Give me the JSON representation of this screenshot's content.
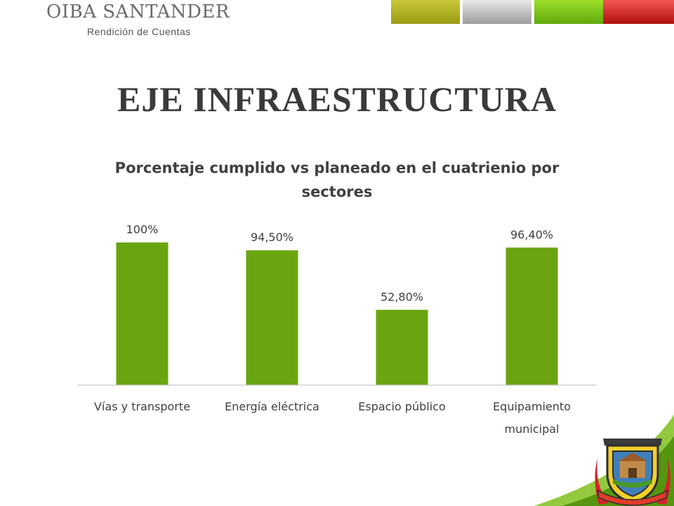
{
  "header": {
    "brand": "OIBA SANTANDER",
    "subtitle": "Rendición de Cuentas",
    "band_colors": [
      "#b5b520",
      "#c4c4c4",
      "#7fcc1c",
      "#d92a2a"
    ]
  },
  "slide": {
    "title": "EJE INFRAESTRUCTURA"
  },
  "chart_data": {
    "type": "bar",
    "title": "Porcentaje cumplido vs planeado en el cuatrienio por sectores",
    "categories": [
      "Vías y transporte",
      "Energía eléctrica",
      "Espacio público",
      "Equipamiento municipal"
    ],
    "values": [
      100,
      94.5,
      52.8,
      96.4
    ],
    "data_labels": [
      "100%",
      "94,50%",
      "52,80%",
      "96,40%"
    ],
    "ylim": [
      0,
      100
    ],
    "grid": false,
    "legend": "none",
    "bar_color": "#6aa511"
  },
  "decor": {
    "crest_icon": "municipal-coat-of-arms",
    "corner_icon": "green-corner-swoosh"
  }
}
